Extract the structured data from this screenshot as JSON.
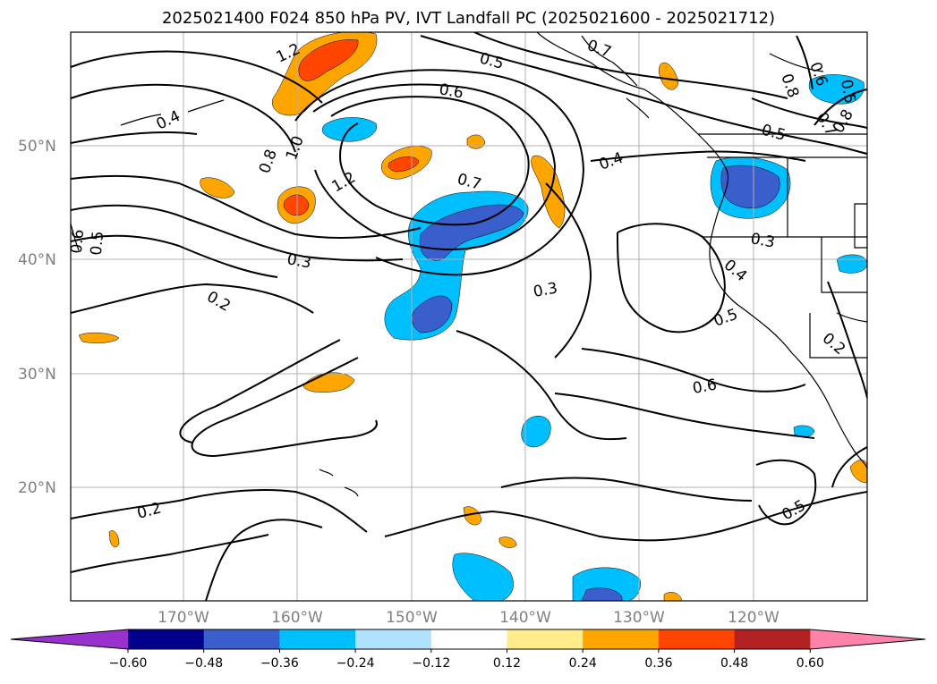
{
  "title": "2025021400 F024 850 hPa PV, IVT Landfall PC (2025021600 - 2025021712)",
  "lat_labels": [
    "50°N",
    "40°N",
    "30°N",
    "20°N"
  ],
  "lon_labels": [
    "170°W",
    "160°W",
    "150°W",
    "140°W",
    "130°W",
    "120°W"
  ],
  "contour_labels": [
    "1.2",
    "0.7",
    "0.5",
    "0.6",
    "0.8",
    "0.6",
    "0.5",
    "0.4",
    "1.0",
    "1.2",
    "0.8",
    "0.7",
    "0.4",
    "0.5",
    "0.7",
    "0.8",
    "0.6",
    "0.5",
    "0.3",
    "0.2",
    "0.3",
    "0.4",
    "0.3",
    "0.5",
    "0.2",
    "0.6",
    "0.2",
    "0.5"
  ],
  "colorbar": {
    "ticks": [
      "−0.60",
      "−0.48",
      "−0.36",
      "−0.24",
      "−0.12",
      "0.12",
      "0.24",
      "0.36",
      "0.48",
      "0.60"
    ],
    "colors": [
      "#9932CC",
      "#00008B",
      "#3A5FCD",
      "#00BFFF",
      "#B0E2FF",
      "#FFFFFF",
      "#FFEC8B",
      "#FFA500",
      "#FF4500",
      "#B22222",
      "#FF82AB"
    ]
  },
  "chart_data": {
    "type": "map",
    "title": "2025021400 F024 850 hPa PV, IVT Landfall PC (2025021600 - 2025021712)",
    "lon_range": [
      180,
      110
    ],
    "lat_range": [
      10,
      60
    ],
    "shading_levels": [
      -0.6,
      -0.48,
      -0.36,
      -0.24,
      -0.12,
      0.12,
      0.24,
      0.36,
      0.48,
      0.6
    ],
    "grid": true
  }
}
